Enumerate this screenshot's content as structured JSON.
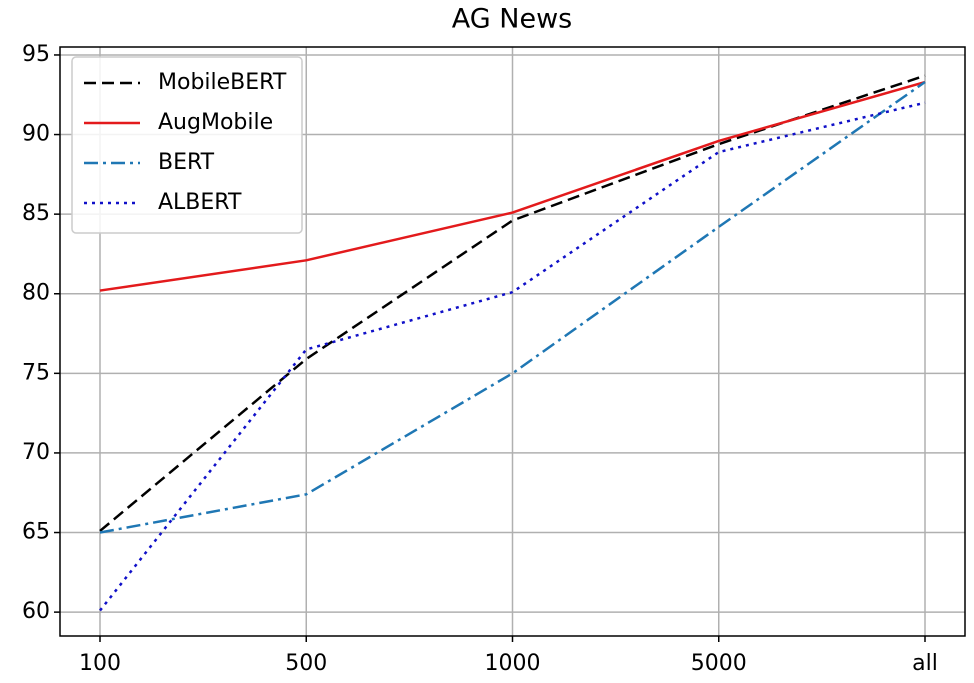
{
  "chart_data": {
    "type": "line",
    "title": "AG News",
    "categories": [
      "100",
      "500",
      "1000",
      "5000",
      "all"
    ],
    "series": [
      {
        "name": "MobileBERT",
        "color": "#000000",
        "linestyle": "dashed",
        "values": [
          65.1,
          75.9,
          84.6,
          89.4,
          93.7
        ]
      },
      {
        "name": "AugMobile",
        "color": "#e31a1c",
        "linestyle": "solid",
        "values": [
          80.2,
          82.1,
          85.1,
          89.6,
          93.3
        ]
      },
      {
        "name": "BERT",
        "color": "#1f77b4",
        "linestyle": "dashdot",
        "values": [
          65.0,
          67.4,
          75.0,
          84.2,
          93.3
        ]
      },
      {
        "name": "ALBERT",
        "color": "#1010c8",
        "linestyle": "dotted",
        "values": [
          60.1,
          76.5,
          80.1,
          88.9,
          92.0
        ]
      }
    ],
    "ylim": [
      58.5,
      95.5
    ],
    "yticks": [
      60,
      65,
      70,
      75,
      80,
      85,
      90,
      95
    ],
    "grid": true,
    "legend": "upper left"
  }
}
